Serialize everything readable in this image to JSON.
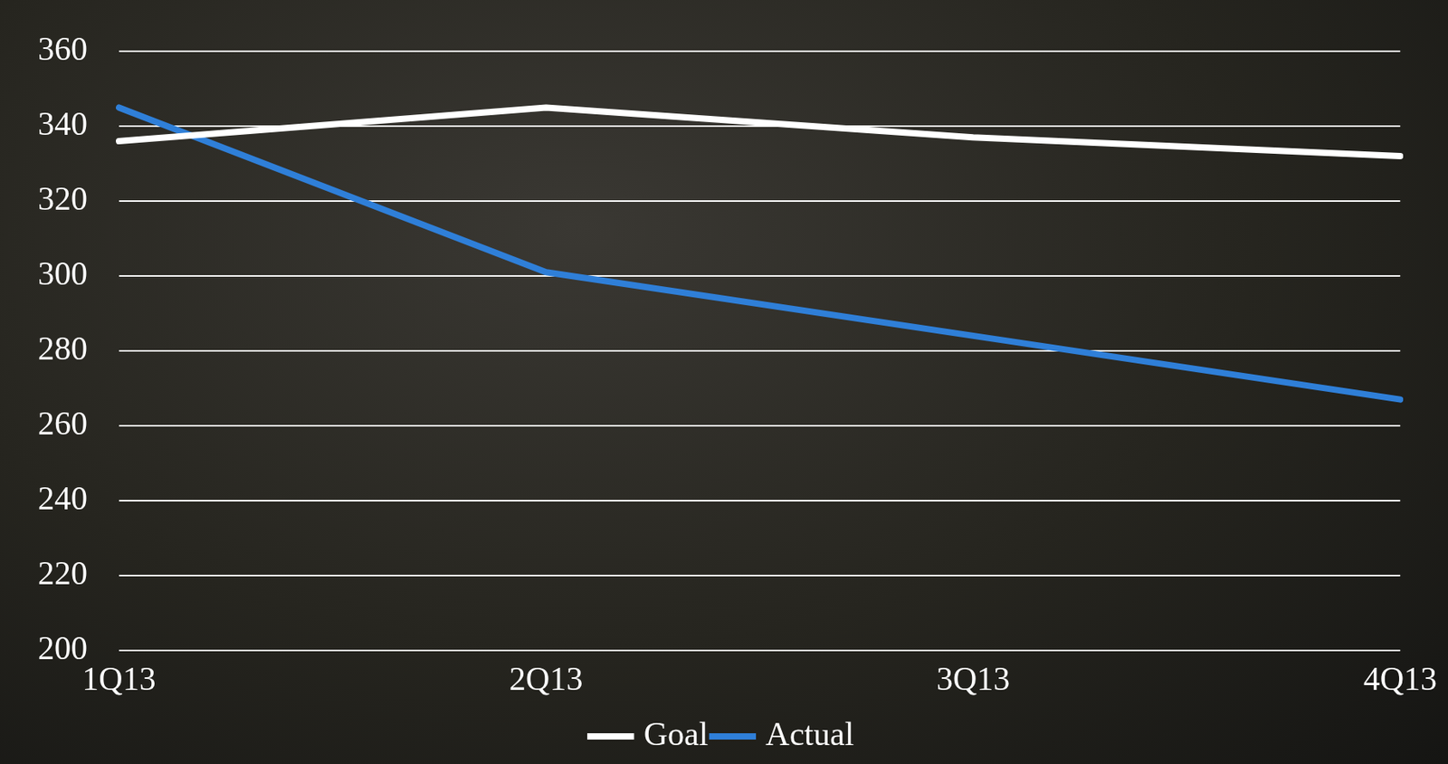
{
  "chart_data": {
    "type": "line",
    "categories": [
      "1Q13",
      "2Q13",
      "3Q13",
      "4Q13"
    ],
    "series": [
      {
        "name": "Goal",
        "color": "#ffffff",
        "values": [
          336,
          345,
          337,
          332
        ]
      },
      {
        "name": "Actual",
        "color": "#2f7fd8",
        "values": [
          345,
          301,
          284,
          267
        ]
      }
    ],
    "ylim": [
      200,
      360
    ],
    "yticks": [
      200,
      220,
      240,
      260,
      280,
      300,
      320,
      340,
      360
    ],
    "grid": true,
    "legend": "bottom",
    "marker": "none"
  }
}
